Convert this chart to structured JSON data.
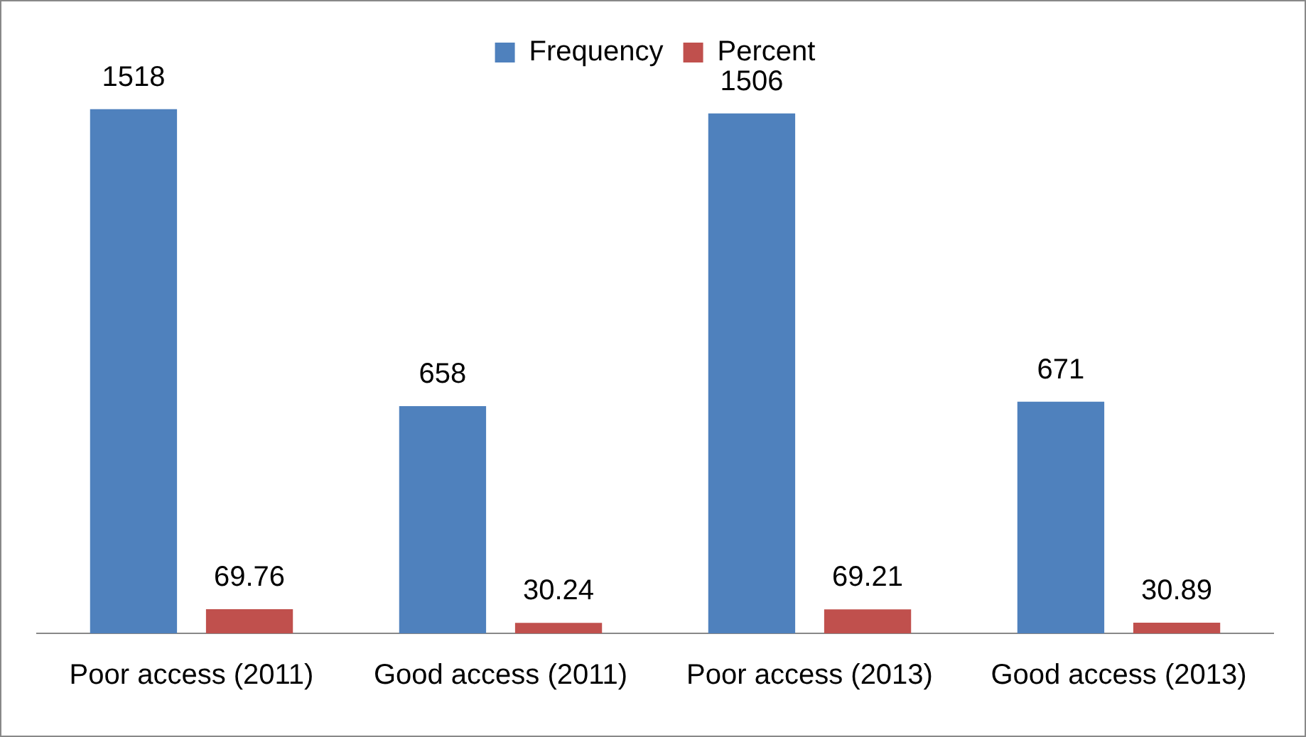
{
  "chart_data": {
    "type": "bar",
    "categories": [
      "Poor access (2011)",
      "Good access (2011)",
      "Poor access (2013)",
      "Good access (2013)"
    ],
    "series": [
      {
        "name": "Percent",
        "color": "#c0504d",
        "values": [
          69.76,
          30.24,
          69.21,
          30.89
        ]
      },
      {
        "name": "Frequency",
        "color": "#4f81bd",
        "values": [
          1518,
          658,
          1506,
          671
        ]
      }
    ],
    "tick_labels": "x",
    "data_labels": true,
    "legend": "top",
    "grid": false
  }
}
